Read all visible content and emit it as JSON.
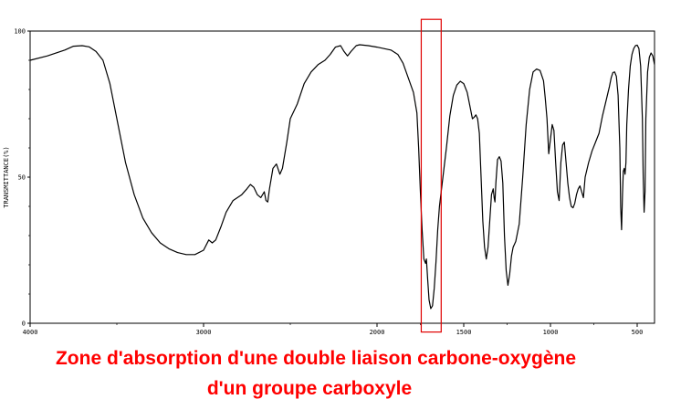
{
  "caption": {
    "line1": "Zone d'absorption d'une double liaison carbone-oxygène",
    "line2": "d'un groupe carboxyle",
    "color": "#ff0000"
  },
  "chart_data": {
    "type": "line",
    "ylabel": "TRANSMITTANCE(%)",
    "xlabel": "",
    "xlim": [
      4000,
      400
    ],
    "ylim": [
      0,
      100
    ],
    "x_ticks": [
      4000,
      3000,
      2000,
      1500,
      1000,
      500
    ],
    "y_ticks": [
      0,
      50,
      100
    ],
    "grid": false,
    "highlight": {
      "x_range": [
        1745,
        1630
      ],
      "y_range": [
        -3,
        104
      ],
      "color": "#e00000"
    },
    "series": [
      {
        "color": "#000000",
        "points": [
          [
            4000,
            90
          ],
          [
            3900,
            91.5
          ],
          [
            3800,
            93.5
          ],
          [
            3750,
            94.8
          ],
          [
            3700,
            95
          ],
          [
            3660,
            94.6
          ],
          [
            3620,
            93
          ],
          [
            3580,
            90
          ],
          [
            3540,
            82
          ],
          [
            3500,
            70
          ],
          [
            3450,
            55
          ],
          [
            3400,
            44
          ],
          [
            3350,
            36
          ],
          [
            3300,
            31
          ],
          [
            3250,
            27.5
          ],
          [
            3200,
            25.5
          ],
          [
            3150,
            24.2
          ],
          [
            3100,
            23.5
          ],
          [
            3050,
            23.5
          ],
          [
            3000,
            25
          ],
          [
            2970,
            28.5
          ],
          [
            2950,
            27.5
          ],
          [
            2930,
            28.5
          ],
          [
            2900,
            33
          ],
          [
            2870,
            38
          ],
          [
            2830,
            42
          ],
          [
            2780,
            44
          ],
          [
            2750,
            46
          ],
          [
            2730,
            47.5
          ],
          [
            2710,
            46.5
          ],
          [
            2690,
            44
          ],
          [
            2670,
            43
          ],
          [
            2650,
            45
          ],
          [
            2640,
            42
          ],
          [
            2630,
            41.5
          ],
          [
            2620,
            46
          ],
          [
            2600,
            53
          ],
          [
            2580,
            54.5
          ],
          [
            2560,
            51
          ],
          [
            2545,
            53
          ],
          [
            2520,
            62
          ],
          [
            2500,
            70
          ],
          [
            2460,
            75
          ],
          [
            2420,
            82
          ],
          [
            2380,
            86
          ],
          [
            2340,
            88.5
          ],
          [
            2300,
            90
          ],
          [
            2270,
            92
          ],
          [
            2240,
            94.5
          ],
          [
            2210,
            95
          ],
          [
            2190,
            93
          ],
          [
            2170,
            91.5
          ],
          [
            2150,
            93
          ],
          [
            2120,
            95
          ],
          [
            2100,
            95.3
          ],
          [
            2050,
            95
          ],
          [
            2000,
            94.5
          ],
          [
            1960,
            94
          ],
          [
            1920,
            93.5
          ],
          [
            1880,
            92
          ],
          [
            1850,
            89
          ],
          [
            1820,
            84
          ],
          [
            1790,
            79
          ],
          [
            1770,
            72
          ],
          [
            1760,
            60
          ],
          [
            1750,
            45
          ],
          [
            1740,
            32
          ],
          [
            1730,
            22
          ],
          [
            1720,
            20.5
          ],
          [
            1715,
            22
          ],
          [
            1708,
            15
          ],
          [
            1700,
            8
          ],
          [
            1690,
            5
          ],
          [
            1680,
            6
          ],
          [
            1670,
            12
          ],
          [
            1660,
            21
          ],
          [
            1650,
            32
          ],
          [
            1640,
            40
          ],
          [
            1620,
            50
          ],
          [
            1600,
            60
          ],
          [
            1580,
            71
          ],
          [
            1560,
            78
          ],
          [
            1540,
            81.5
          ],
          [
            1520,
            82.8
          ],
          [
            1500,
            82
          ],
          [
            1480,
            79
          ],
          [
            1460,
            73
          ],
          [
            1450,
            70
          ],
          [
            1440,
            70.5
          ],
          [
            1430,
            71.3
          ],
          [
            1420,
            70
          ],
          [
            1410,
            65
          ],
          [
            1400,
            50
          ],
          [
            1390,
            35
          ],
          [
            1380,
            26
          ],
          [
            1370,
            22
          ],
          [
            1360,
            26
          ],
          [
            1350,
            35
          ],
          [
            1340,
            44
          ],
          [
            1330,
            46
          ],
          [
            1325,
            43
          ],
          [
            1320,
            41.5
          ],
          [
            1315,
            48
          ],
          [
            1305,
            56
          ],
          [
            1295,
            57
          ],
          [
            1285,
            55.5
          ],
          [
            1275,
            48
          ],
          [
            1265,
            30
          ],
          [
            1255,
            18
          ],
          [
            1245,
            13
          ],
          [
            1235,
            17
          ],
          [
            1225,
            23
          ],
          [
            1215,
            26
          ],
          [
            1200,
            28
          ],
          [
            1180,
            34
          ],
          [
            1160,
            50
          ],
          [
            1140,
            68
          ],
          [
            1120,
            80
          ],
          [
            1100,
            86
          ],
          [
            1080,
            87
          ],
          [
            1060,
            86.5
          ],
          [
            1040,
            83
          ],
          [
            1030,
            77
          ],
          [
            1020,
            70
          ],
          [
            1010,
            58
          ],
          [
            1000,
            63
          ],
          [
            990,
            68
          ],
          [
            980,
            66
          ],
          [
            970,
            55
          ],
          [
            960,
            45
          ],
          [
            950,
            42
          ],
          [
            940,
            55
          ],
          [
            930,
            61
          ],
          [
            920,
            62
          ],
          [
            910,
            55
          ],
          [
            900,
            48
          ],
          [
            890,
            43
          ],
          [
            880,
            40
          ],
          [
            870,
            39.5
          ],
          [
            860,
            41
          ],
          [
            850,
            44
          ],
          [
            840,
            46
          ],
          [
            830,
            47
          ],
          [
            820,
            45
          ],
          [
            810,
            43
          ],
          [
            800,
            50
          ],
          [
            780,
            55
          ],
          [
            760,
            59
          ],
          [
            740,
            62
          ],
          [
            720,
            65
          ],
          [
            700,
            71
          ],
          [
            680,
            76
          ],
          [
            660,
            81
          ],
          [
            650,
            84
          ],
          [
            640,
            85.8
          ],
          [
            630,
            86
          ],
          [
            620,
            84.5
          ],
          [
            610,
            78
          ],
          [
            600,
            60
          ],
          [
            595,
            40
          ],
          [
            590,
            32
          ],
          [
            585,
            44
          ],
          [
            580,
            52
          ],
          [
            575,
            53
          ],
          [
            570,
            51
          ],
          [
            565,
            55
          ],
          [
            560,
            68
          ],
          [
            550,
            80
          ],
          [
            540,
            88
          ],
          [
            530,
            92
          ],
          [
            520,
            94
          ],
          [
            510,
            95
          ],
          [
            500,
            95.2
          ],
          [
            490,
            94
          ],
          [
            480,
            88
          ],
          [
            470,
            70
          ],
          [
            465,
            50
          ],
          [
            460,
            38
          ],
          [
            455,
            45
          ],
          [
            450,
            70
          ],
          [
            440,
            86
          ],
          [
            430,
            91
          ],
          [
            420,
            92.5
          ],
          [
            410,
            91.5
          ],
          [
            400,
            88.5
          ]
        ]
      }
    ]
  }
}
